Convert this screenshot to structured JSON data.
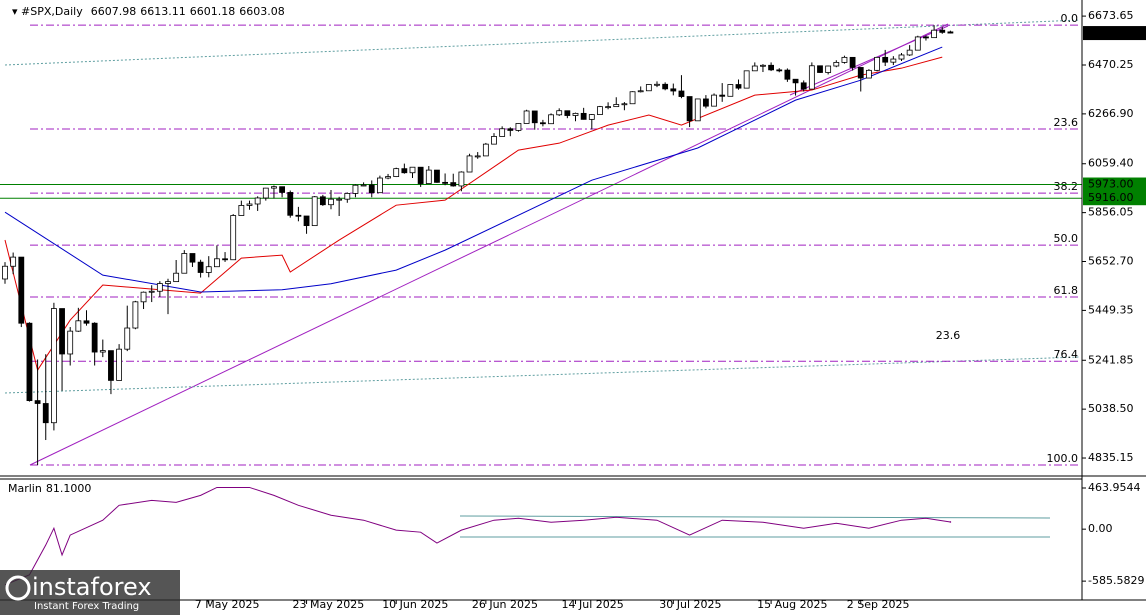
{
  "header": {
    "symbol": "#SPX,Daily",
    "ohlc": [
      6607.98,
      6613.11,
      6601.18,
      6603.08
    ]
  },
  "watermark": {
    "brand": "instaforex",
    "tagline": "Instant Forex Trading"
  },
  "chart_data": [
    {
      "type": "candlestick",
      "categories": [
        null,
        null,
        null,
        null,
        null,
        null,
        null,
        null,
        null,
        null,
        null,
        null,
        null,
        null,
        null,
        null,
        null,
        null,
        null,
        null,
        null,
        null,
        null,
        null,
        null,
        "7 May 2025",
        null,
        null,
        null,
        null,
        null,
        null,
        null,
        null,
        null,
        null,
        null,
        "23 May 2025",
        null,
        null,
        null,
        null,
        null,
        null,
        null,
        null,
        null,
        null,
        "10 Jun 2025",
        null,
        null,
        null,
        null,
        null,
        null,
        null,
        null,
        null,
        null,
        "26 Jun 2025",
        null,
        null,
        null,
        null,
        null,
        null,
        null,
        null,
        null,
        null,
        "14 Jul 2025",
        null,
        null,
        null,
        null,
        null,
        null,
        null,
        null,
        null,
        null,
        null,
        "30 Jul 2025",
        null,
        null,
        null,
        null,
        null,
        null,
        null,
        null,
        null,
        null,
        null,
        "15 Aug 2025",
        null,
        null,
        null,
        null,
        null,
        null,
        null,
        null,
        null,
        null,
        "2 Sep 2025",
        null,
        null,
        null,
        null,
        null,
        null,
        null,
        null,
        null,
        null,
        null
      ],
      "open": [
        5580,
        5633,
        5671,
        5396,
        5074,
        5062,
        4982,
        5457,
        5268,
        5363,
        5406,
        5396,
        5276,
        5282,
        5158,
        5288,
        5376,
        5485,
        5525,
        5529,
        5561,
        5569,
        5604,
        5686,
        5650,
        5607,
        5631,
        5664,
        5660,
        5844,
        5886,
        5892,
        5917,
        5958,
        5964,
        5940,
        5845,
        5842,
        5802,
        5922,
        5889,
        5912,
        5912,
        5936,
        5970,
        5971,
        5939,
        6000,
        6006,
        6039,
        6022,
        6045,
        5977,
        6033,
        5982,
        5981,
        5967,
        6025,
        6092,
        6092,
        6141,
        6173,
        6205,
        6198,
        6227,
        6279,
        6230,
        6226,
        6263,
        6280,
        6260,
        6269,
        6244,
        6264,
        6297,
        6297,
        6306,
        6309,
        6359,
        6363,
        6389,
        6390,
        6371,
        6362,
        6339,
        6238,
        6329,
        6299,
        6345,
        6340,
        6389,
        6374,
        6446,
        6466,
        6469,
        6450,
        6449,
        6411,
        6396,
        6370,
        6467,
        6439,
        6466,
        6481,
        6502,
        6460,
        6416,
        6448,
        6502,
        6482,
        6495,
        6512,
        6532,
        6587,
        6584,
        6615,
        6607.98
      ],
      "high": [
        5650,
        5690,
        5671,
        5400,
        5245,
        5267,
        5481,
        5457,
        5380,
        5460,
        5450,
        5400,
        5328,
        5282,
        5309,
        5469,
        5489,
        5528,
        5554,
        5571,
        5581,
        5659,
        5700,
        5686,
        5660,
        5675,
        5720,
        5692,
        5850,
        5906,
        5906,
        5924,
        5959,
        5969,
        5964,
        5948,
        5880,
        5842,
        5925,
        5930,
        5950,
        5922,
        5940,
        5974,
        5982,
        5990,
        6010,
        6017,
        6043,
        6060,
        6046,
        6045,
        6050,
        6033,
        6019,
        6018,
        6028,
        6101,
        6108,
        6146,
        6187,
        6215,
        6211,
        6228,
        6284,
        6279,
        6242,
        6269,
        6290,
        6280,
        6272,
        6292,
        6266,
        6300,
        6315,
        6336,
        6316,
        6361,
        6381,
        6390,
        6402,
        6398,
        6393,
        6428,
        6339,
        6330,
        6345,
        6352,
        6395,
        6390,
        6410,
        6446,
        6481,
        6474,
        6481,
        6457,
        6456,
        6411,
        6406,
        6481,
        6467,
        6468,
        6490,
        6509,
        6502,
        6460,
        6453,
        6502,
        6533,
        6507,
        6520,
        6553,
        6592,
        6593,
        6636,
        6628,
        6613.11
      ],
      "low": [
        5560,
        5600,
        5380,
        5070,
        4806,
        4910,
        4950,
        5115,
        5220,
        5360,
        5386,
        5220,
        5255,
        5101,
        5158,
        5280,
        5371,
        5455,
        5484,
        5505,
        5434,
        5569,
        5604,
        5630,
        5586,
        5587,
        5631,
        5651,
        5660,
        5844,
        5868,
        5863,
        5906,
        5915,
        5920,
        5835,
        5820,
        5768,
        5802,
        5884,
        5870,
        5842,
        5897,
        5920,
        5966,
        5920,
        5939,
        5995,
        6004,
        6018,
        6000,
        5963,
        5977,
        5980,
        5970,
        5964,
        5945,
        6025,
        6080,
        6092,
        6141,
        6173,
        6174,
        6193,
        6227,
        6201,
        6215,
        6226,
        6258,
        6249,
        6236,
        6243,
        6202,
        6264,
        6286,
        6297,
        6282,
        6309,
        6356,
        6363,
        6378,
        6365,
        6344,
        6332,
        6212,
        6238,
        6290,
        6299,
        6317,
        6340,
        6367,
        6374,
        6446,
        6441,
        6445,
        6440,
        6400,
        6343,
        6360,
        6370,
        6437,
        6431,
        6461,
        6476,
        6447,
        6360,
        6416,
        6444,
        6466,
        6470,
        6487,
        6508,
        6532,
        6572,
        6584,
        6600,
        6601.18
      ],
      "close": [
        5633,
        5671,
        5396,
        5074,
        5062,
        4982,
        5457,
        5268,
        5363,
        5406,
        5396,
        5276,
        5282,
        5158,
        5288,
        5376,
        5485,
        5525,
        5529,
        5561,
        5569,
        5604,
        5686,
        5650,
        5607,
        5631,
        5664,
        5660,
        5844,
        5886,
        5892,
        5917,
        5958,
        5964,
        5940,
        5845,
        5842,
        5802,
        5922,
        5889,
        5912,
        5912,
        5936,
        5970,
        5971,
        5939,
        6000,
        6006,
        6039,
        6022,
        6045,
        5977,
        6033,
        5982,
        5981,
        5967,
        6025,
        6092,
        6092,
        6141,
        6173,
        6205,
        6198,
        6227,
        6279,
        6230,
        6226,
        6263,
        6280,
        6260,
        6269,
        6244,
        6264,
        6297,
        6297,
        6306,
        6309,
        6359,
        6363,
        6389,
        6390,
        6371,
        6362,
        6339,
        6238,
        6329,
        6299,
        6345,
        6340,
        6389,
        6374,
        6446,
        6466,
        6469,
        6450,
        6449,
        6411,
        6396,
        6370,
        6467,
        6439,
        6466,
        6481,
        6502,
        6460,
        6416,
        6448,
        6502,
        6482,
        6495,
        6512,
        6532,
        6587,
        6584,
        6615,
        6606,
        6603.08
      ],
      "up_color": "#ffffff",
      "down_color": "#000000",
      "ylim": [
        4777,
        6724
      ],
      "yticks": [
        6673.65,
        6470.25,
        {
          "value": 6266.9,
          "label": "6266.90"
        },
        {
          "value": 6059.4,
          "label": "6059.40"
        },
        5856.05,
        {
          "value": 5652.7,
          "label": "5652.70"
        },
        5449.35,
        5241.85,
        {
          "value": 5038.5,
          "label": "5038.50"
        },
        4835.15
      ],
      "overlays": [
        {
          "type": "line",
          "color": "#e00000",
          "x": [
            0,
            4,
            8,
            12,
            24,
            29,
            34,
            35,
            41,
            48,
            54,
            63,
            68,
            74,
            79,
            83,
            92,
            99,
            105,
            110,
            115
          ],
          "values": [
            5742,
            5201,
            5409,
            5555,
            5521,
            5667,
            5679,
            5609,
            5742,
            5887,
            5908,
            6116,
            6145,
            6220,
            6262,
            6220,
            6345,
            6366,
            6428,
            6457,
            6503
          ]
        },
        {
          "type": "line",
          "color": "#0000c8",
          "x": [
            0,
            12,
            24,
            34,
            40,
            48,
            54,
            72,
            85,
            97,
            105,
            115
          ],
          "values": [
            5858,
            5596,
            5526,
            5535,
            5560,
            5617,
            5700,
            5991,
            6125,
            6324,
            6407,
            6545
          ]
        }
      ],
      "hlines": {
        "color": "#008000",
        "levels": [
          {
            "value": 5973,
            "label": "5973.00"
          },
          {
            "value": 5916,
            "label": "5916.00"
          }
        ]
      },
      "fib": {
        "color": "#a020c0",
        "levels": [
          {
            "ratio": "0.0",
            "price": 6636
          },
          {
            "ratio": "23.6",
            "price": 6204
          },
          {
            "ratio": "38.2",
            "price": 5937
          },
          {
            "ratio": "50.0",
            "price": 5721
          },
          {
            "ratio": "61.8",
            "price": 5505
          },
          {
            "ratio": "76.4",
            "price": 5238
          },
          {
            "ratio": "100.0",
            "price": 4806
          }
        ]
      },
      "annotations": [
        {
          "text": "23.6",
          "price": 5293,
          "color": "#5f9ea0"
        }
      ],
      "last_price": 6603.08
    },
    {
      "type": "line",
      "title": "Marlin",
      "last": {
        "value": 81.1,
        "label": "81.1000"
      },
      "color": "#800080",
      "x": [
        0,
        3,
        5,
        6,
        7,
        8,
        12,
        14,
        18,
        21,
        24,
        26,
        30,
        33,
        36,
        40,
        44,
        48,
        51,
        53,
        56,
        60,
        63,
        67,
        71,
        75,
        80,
        84,
        88,
        93,
        98,
        102,
        106,
        110,
        113,
        116
      ],
      "values": [
        -627,
        -515,
        -179,
        11,
        -291,
        -67,
        101,
        269,
        325,
        302,
        381,
        470,
        470,
        381,
        269,
        157,
        101,
        -11,
        -34,
        -157,
        -11,
        101,
        123,
        78,
        101,
        134,
        101,
        -67,
        101,
        78,
        11,
        67,
        11,
        101,
        123,
        81.1
      ],
      "ylim": [
        -787,
        554
      ],
      "yticks": [
        463.9544,
        {
          "value": 0,
          "label": "0.00"
        },
        -585.5829
      ]
    }
  ]
}
